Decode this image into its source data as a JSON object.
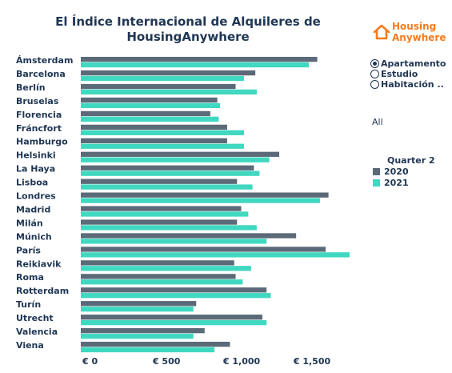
{
  "title": "El Índice Internacional de Alquileres de HousingAnywhere",
  "logo": {
    "line1": "Housing",
    "line2": "Anywhere",
    "icon": "house-icon",
    "color": "#f47d20"
  },
  "property_type": {
    "options": [
      "Apartamento",
      "Estudio",
      "Habitación .."
    ],
    "selected": "Apartamento"
  },
  "filter": {
    "value": "All"
  },
  "colors": {
    "2020": "#5b6a78",
    "2021": "#40d8c0",
    "text": "#1f3653"
  },
  "chart_data": {
    "type": "bar",
    "orientation": "horizontal",
    "categories": [
      "Ámsterdam",
      "Barcelona",
      "Berlín",
      "Bruselas",
      "Florencia",
      "Fráncfort",
      "Hamburgo",
      "Helsinki",
      "La Haya",
      "Lisboa",
      "Londres",
      "Madrid",
      "Milán",
      "Múnich",
      "París",
      "Reikiavik",
      "Roma",
      "Rotterdam",
      "Turín",
      "Utrecht",
      "Valencia",
      "Viena"
    ],
    "series": [
      {
        "name": "2020",
        "values": [
          1680,
          1240,
          1100,
          970,
          920,
          1040,
          1040,
          1410,
          1230,
          1110,
          1760,
          1140,
          1110,
          1530,
          1740,
          1090,
          1100,
          1320,
          820,
          1290,
          880,
          1060
        ]
      },
      {
        "name": "2021",
        "values": [
          1620,
          1160,
          1250,
          990,
          980,
          1160,
          1160,
          1340,
          1270,
          1220,
          1700,
          1190,
          1250,
          1320,
          1910,
          1210,
          1150,
          1350,
          800,
          1320,
          800,
          950
        ]
      }
    ],
    "xlim": [
      0,
      1910
    ],
    "xticks": [
      0,
      500,
      1000,
      1500
    ],
    "xtick_labels": [
      "€ 0",
      "€ 500",
      "€ 1,000",
      "€ 1,500"
    ],
    "legend": {
      "title": "Quarter 2",
      "position": "right"
    },
    "grid": false
  }
}
